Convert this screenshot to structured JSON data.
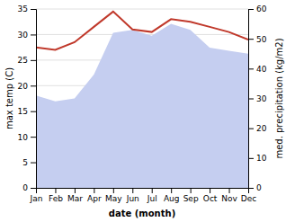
{
  "chart_data": {
    "type": "line",
    "xlabel": "date (month)",
    "ylabel": "max temp (C)",
    "y2label": "med. precipitation (kg/m2)",
    "categories": [
      "Jan",
      "Feb",
      "Mar",
      "Apr",
      "May",
      "Jun",
      "Jul",
      "Aug",
      "Sep",
      "Oct",
      "Nov",
      "Dec"
    ],
    "series": [
      {
        "type": "area",
        "axis": "y2",
        "color": "#c5cef0",
        "values": [
          31,
          29,
          30,
          38,
          52,
          53,
          51,
          55,
          53,
          47,
          46,
          45
        ]
      },
      {
        "type": "line",
        "color": "#c0392b",
        "values": [
          27.5,
          27.0,
          28.5,
          31.5,
          34.5,
          31.0,
          30.5,
          33.0,
          32.5,
          31.5,
          30.5,
          29.0
        ]
      }
    ],
    "ylim": [
      0,
      35
    ],
    "yticks": [
      0,
      5,
      10,
      15,
      20,
      25,
      30,
      35
    ],
    "y2lim": [
      0,
      60
    ],
    "y2ticks": [
      0,
      10,
      20,
      30,
      40,
      50,
      60
    ],
    "grid": true
  }
}
